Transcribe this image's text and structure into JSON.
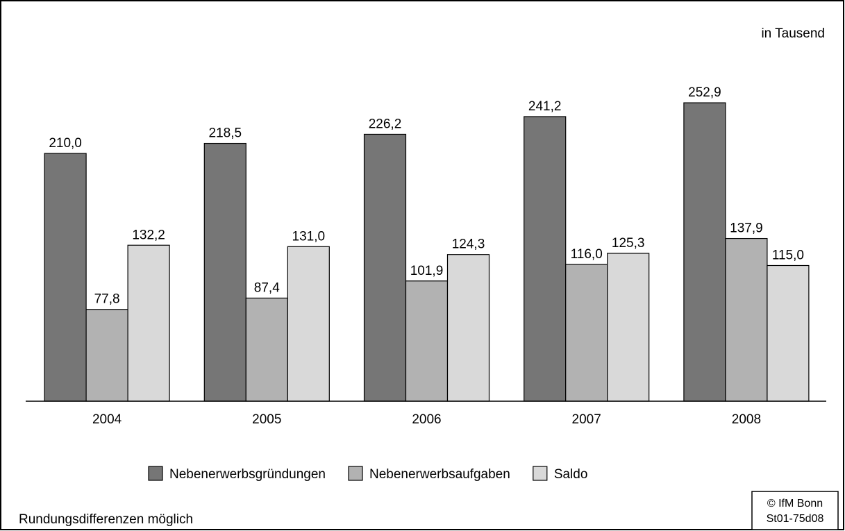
{
  "chart_data": {
    "type": "bar",
    "unit_label": "in Tausend",
    "categories": [
      "2004",
      "2005",
      "2006",
      "2007",
      "2008"
    ],
    "series": [
      {
        "name": "Nebenerwerbsgründungen",
        "color": "#767676",
        "values": [
          210.0,
          218.5,
          226.2,
          241.2,
          252.9
        ],
        "value_labels": [
          "210,0",
          "218,5",
          "226,2",
          "241,2",
          "252,9"
        ]
      },
      {
        "name": "Nebenerwerbsaufgaben",
        "color": "#b2b2b2",
        "values": [
          77.8,
          87.4,
          101.9,
          116.0,
          137.9
        ],
        "value_labels": [
          "77,8",
          "87,4",
          "101,9",
          "116,0",
          "137,9"
        ]
      },
      {
        "name": "Saldo",
        "color": "#d9d9d9",
        "values": [
          132.2,
          131.0,
          124.3,
          125.3,
          115.0
        ],
        "value_labels": [
          "132,2",
          "131,0",
          "124,3",
          "125,3",
          "115,0"
        ]
      }
    ],
    "ylim": [
      0,
      300
    ],
    "legend": "bottom",
    "note": "Rundungsdifferenzen möglich",
    "source": [
      "© IfM Bonn",
      "St01-75d08"
    ]
  }
}
